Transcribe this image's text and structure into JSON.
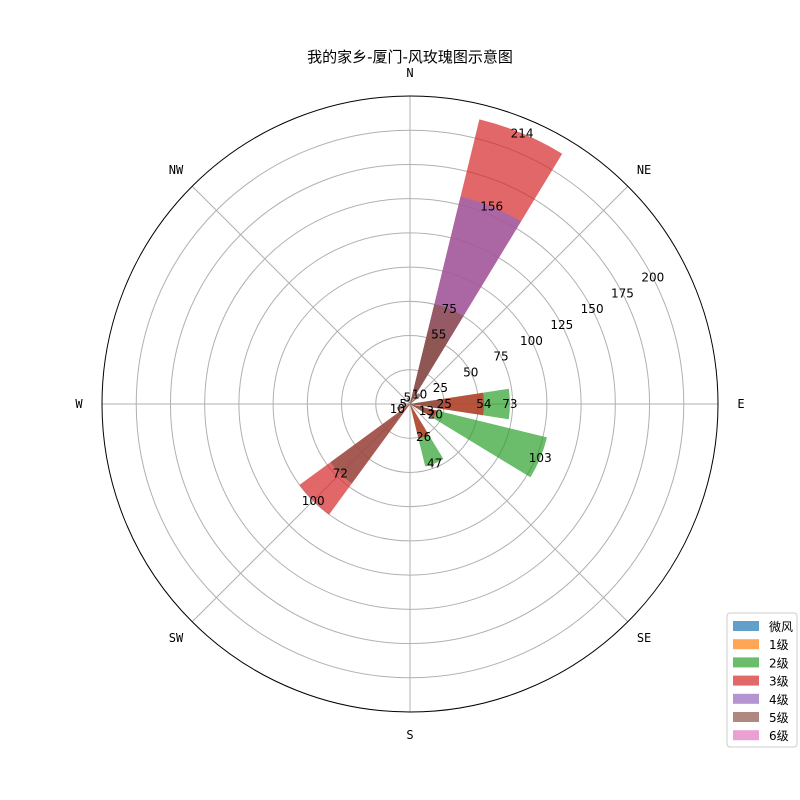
{
  "chart_data": {
    "type": "polar-bar",
    "title": "我的家乡-厦门-风玫瑰图示意图",
    "directions": [
      "N",
      "NE",
      "E",
      "SE",
      "S",
      "SW",
      "W",
      "NW"
    ],
    "sector_angles_deg": [
      0,
      22.5,
      45,
      67.5,
      90,
      112.5,
      135,
      157.5,
      180,
      202.5,
      225,
      247.5,
      270,
      292.5,
      315,
      337.5
    ],
    "radial_ticks": [
      25,
      50,
      75,
      100,
      125,
      150,
      175,
      200
    ],
    "rmax": 225,
    "legend": [
      {
        "name": "微风",
        "color": "#1f77b4"
      },
      {
        "name": "1级",
        "color": "#ff7f0e"
      },
      {
        "name": "2级",
        "color": "#2ca02c"
      },
      {
        "name": "3级",
        "color": "#d62728"
      },
      {
        "name": "4级",
        "color": "#9467bd"
      },
      {
        "name": "5级",
        "color": "#8c564b"
      },
      {
        "name": "6级",
        "color": "#e377c2"
      }
    ],
    "bars": [
      {
        "angle": 22.5,
        "value": 214,
        "color": "#d62728",
        "label": "214"
      },
      {
        "angle": 22.5,
        "value": 156,
        "color": "#9467bd",
        "label": "156"
      },
      {
        "angle": 22.5,
        "value": 75,
        "color": "#8c564b",
        "label": "75"
      },
      {
        "angle": 22.5,
        "value": 55,
        "color": "#8c564b",
        "label": "55"
      },
      {
        "angle": 90,
        "value": 73,
        "color": "#2ca02c",
        "label": "73"
      },
      {
        "angle": 90,
        "value": 54,
        "color": "#d62728",
        "label": "54"
      },
      {
        "angle": 90,
        "value": 25,
        "color": "#8c564b",
        "label": "25"
      },
      {
        "angle": 112.5,
        "value": 103,
        "color": "#2ca02c",
        "label": "103"
      },
      {
        "angle": 112.5,
        "value": 20,
        "color": "#d62728",
        "label": "20"
      },
      {
        "angle": 112.5,
        "value": 13,
        "color": "#8c564b",
        "label": "13"
      },
      {
        "angle": 157.5,
        "value": 47,
        "color": "#2ca02c",
        "label": "47"
      },
      {
        "angle": 157.5,
        "value": 26,
        "color": "#d62728",
        "label": "26"
      },
      {
        "angle": 225,
        "value": 100,
        "color": "#d62728",
        "label": "100"
      },
      {
        "angle": 225,
        "value": 72,
        "color": "#8c564b",
        "label": "72"
      },
      {
        "angle": 247.5,
        "value": 10,
        "color": "#8c564b",
        "label": "10"
      },
      {
        "angle": 270,
        "value": 5,
        "color": "#8c564b",
        "label": "5"
      },
      {
        "angle": 337.5,
        "value": 5,
        "color": "#8c564b",
        "label": "5"
      },
      {
        "angle": 45,
        "value": 10,
        "color": "#8c564b",
        "label": "10"
      }
    ]
  }
}
